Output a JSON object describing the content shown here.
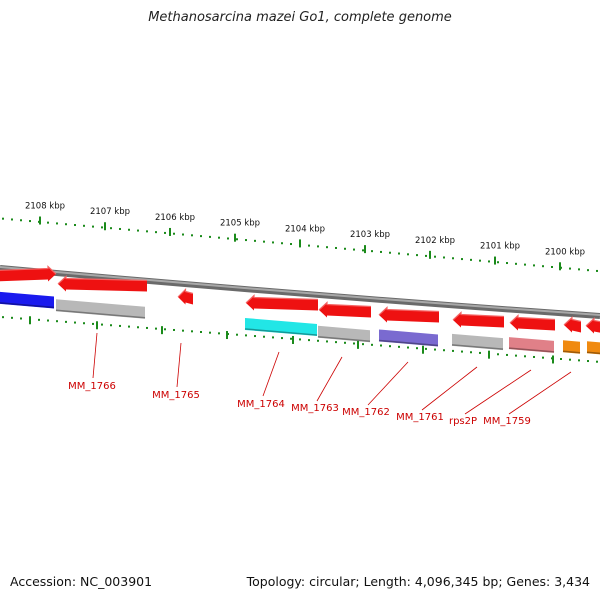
{
  "title": "Methanosarcina mazei Go1, complete genome",
  "footer": {
    "accession": "Accession: NC_003901",
    "summary": "Topology: circular; Length: 4,096,345 bp; Genes: 3,434"
  },
  "ticks": [
    {
      "label": "2108 kbp",
      "kbp": 2108
    },
    {
      "label": "2107 kbp",
      "kbp": 2107
    },
    {
      "label": "2106 kbp",
      "kbp": 2106
    },
    {
      "label": "2105 kbp",
      "kbp": 2105
    },
    {
      "label": "2104 kbp",
      "kbp": 2104
    },
    {
      "label": "2103 kbp",
      "kbp": 2103
    },
    {
      "label": "2102 kbp",
      "kbp": 2102
    },
    {
      "label": "2101 kbp",
      "kbp": 2101
    },
    {
      "label": "2100 kbp",
      "kbp": 2100
    }
  ],
  "genes": [
    {
      "label": "MM_1766"
    },
    {
      "label": "MM_1765"
    },
    {
      "label": "MM_1764"
    },
    {
      "label": "MM_1763"
    },
    {
      "label": "MM_1762"
    },
    {
      "label": "MM_1761"
    },
    {
      "label": "rps2P"
    },
    {
      "label": "MM_1759"
    }
  ],
  "colors": {
    "gene": "#ee1111",
    "backbone": "#8a8a8a",
    "tick": "#1a8a1a",
    "label": "#cc0000",
    "category_blue": "#1a1aee",
    "category_cyan": "#22e6e6",
    "category_gray": "#b8b8b8",
    "category_purple": "#7a6ad0",
    "category_pink": "#e08088",
    "category_orange": "#f08a10"
  }
}
